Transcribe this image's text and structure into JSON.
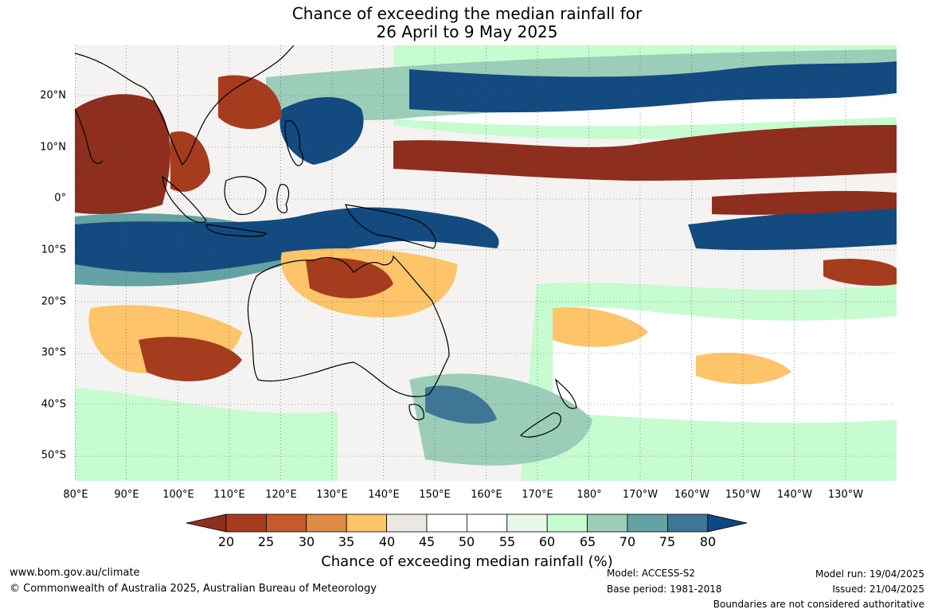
{
  "title": {
    "line1": "Chance of exceeding the median rainfall for",
    "line2": "26 April to 9 May 2025"
  },
  "axes": {
    "lon_labels": [
      "80°E",
      "90°E",
      "100°E",
      "110°E",
      "120°E",
      "130°E",
      "140°E",
      "150°E",
      "160°E",
      "170°E",
      "180°",
      "170°W",
      "160°W",
      "150°W",
      "140°W",
      "130°W"
    ],
    "lat_labels": [
      "20°N",
      "10°N",
      "0°",
      "10°S",
      "20°S",
      "30°S",
      "40°S",
      "50°S"
    ]
  },
  "colorbar": {
    "label": "Chance of exceeding median rainfall (%)",
    "ticks": [
      "20",
      "25",
      "30",
      "35",
      "40",
      "45",
      "50",
      "55",
      "60",
      "65",
      "70",
      "75",
      "80"
    ],
    "colors": [
      "#a63c1e",
      "#c55a2c",
      "#de8c45",
      "#fdc46a",
      "#ebe8e3",
      "#ffffff",
      "#ffffff",
      "#e9f7e9",
      "#c7fbd0",
      "#9bcdb8",
      "#65a2a3",
      "#3e7795",
      "#134a80"
    ],
    "low_arrow_color": "#8e2e1f",
    "high_arrow_color": "#0f4786"
  },
  "footer": {
    "website": "www.bom.gov.au/climate",
    "copyright": "© Commonwealth of Australia 2025, Australian Bureau of Meteorology",
    "model": "Model: ACCESS-S2",
    "base_period": "Base period: 1981-2018",
    "model_run": "Model run: 19/04/2025",
    "issued": "Issued: 21/04/2025",
    "disclaimer": "Boundaries are not considered authoritative"
  }
}
